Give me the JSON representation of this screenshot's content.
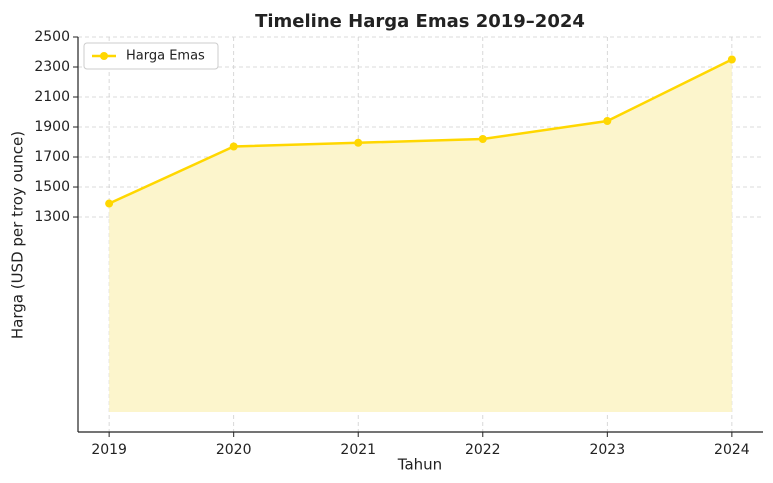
{
  "chart_data": {
    "type": "line",
    "title": "Timeline Harga Emas 2019–2024",
    "x_label": "Tahun",
    "y_label": "Harga (USD per troy ounce)",
    "x": [
      2019,
      2020,
      2021,
      2022,
      2023,
      2024
    ],
    "series": [
      {
        "name": "Harga Emas",
        "color": "#FFD700",
        "values": [
          1390,
          1770,
          1795,
          1820,
          1940,
          2350
        ]
      }
    ],
    "area_fill": "#FCF5CC",
    "xlim": [
      2018.75,
      2024.25
    ],
    "xticks": [
      2019,
      2020,
      2021,
      2022,
      2023,
      2024
    ],
    "ylim": [
      -133,
      2500
    ],
    "yticks": [
      1300,
      1500,
      1700,
      1900,
      2100,
      2300,
      2500
    ],
    "grid": true,
    "legend": "upper-left"
  }
}
